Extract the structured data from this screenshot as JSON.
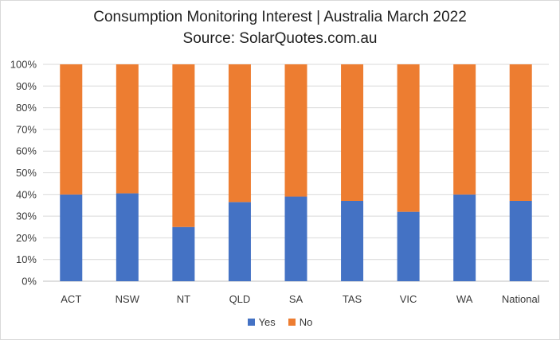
{
  "chart_data": {
    "type": "bar",
    "stacked": true,
    "title": "Consumption Monitoring Interest | Australia March 2022",
    "subtitle": "Source: SolarQuotes.com.au",
    "categories": [
      "ACT",
      "NSW",
      "NT",
      "QLD",
      "SA",
      "TAS",
      "VIC",
      "WA",
      "National"
    ],
    "series": [
      {
        "name": "Yes",
        "color": "#4472C4",
        "values": [
          40,
          40.5,
          25,
          36.5,
          39,
          37,
          32,
          40,
          37
        ]
      },
      {
        "name": "No",
        "color": "#ED7D31",
        "values": [
          60,
          59.5,
          75,
          63.5,
          61,
          63,
          68,
          60,
          63
        ]
      }
    ],
    "yticks": [
      "0%",
      "10%",
      "20%",
      "30%",
      "40%",
      "50%",
      "60%",
      "70%",
      "80%",
      "90%",
      "100%"
    ],
    "ylim": [
      0,
      100
    ],
    "grid": true,
    "legend": "bottom"
  }
}
